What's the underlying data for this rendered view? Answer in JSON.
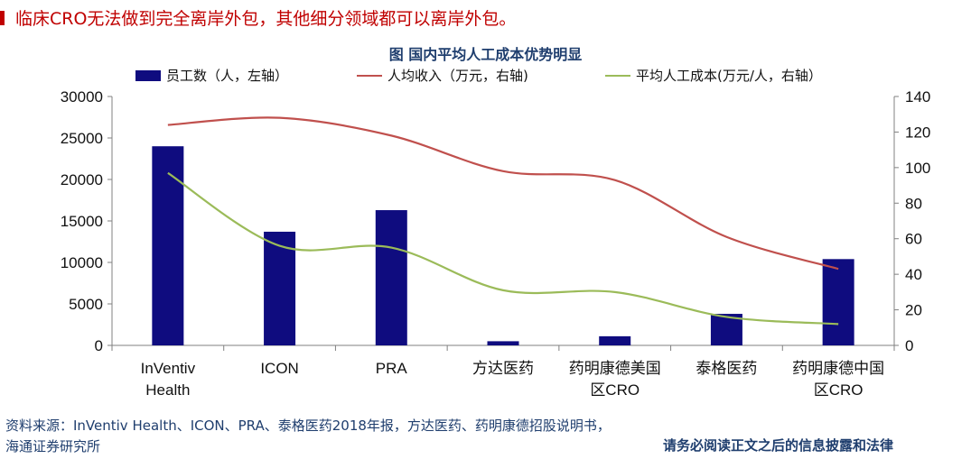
{
  "heading": "临床CRO无法做到完全离岸外包，其他细分领域都可以离岸外包。",
  "chart_data": {
    "type": "bar",
    "title": "图  国内平均人工成本优势明显",
    "categories": [
      [
        "InVentiv",
        "Health"
      ],
      [
        "ICON"
      ],
      [
        "PRA"
      ],
      [
        "方达医药"
      ],
      [
        "药明康德美国",
        "区CRO"
      ],
      [
        "泰格医药"
      ],
      [
        "药明康德中国",
        "区CRO"
      ]
    ],
    "left_axis": {
      "min": 0,
      "max": 30000,
      "ticks": [
        "0",
        "5000",
        "10000",
        "15000",
        "20000",
        "25000",
        "30000"
      ]
    },
    "right_axis": {
      "min": 0,
      "max": 140,
      "ticks": [
        "0",
        "20",
        "40",
        "60",
        "80",
        "100",
        "120",
        "140"
      ]
    },
    "series": [
      {
        "name": "员工数（人，左轴）",
        "type": "bar",
        "axis": "left",
        "color": "#0F0C7F",
        "values": [
          24000,
          13700,
          16300,
          500,
          1100,
          3800,
          10400
        ]
      },
      {
        "name": "人均收入（万元，右轴)",
        "type": "line",
        "axis": "right",
        "color": "#C0504D",
        "values": [
          124,
          128,
          118,
          98,
          93,
          61,
          43
        ]
      },
      {
        "name": "平均人工成本(万元/人，右轴）",
        "type": "line",
        "axis": "right",
        "color": "#9BBB59",
        "values": [
          97,
          56,
          55,
          31,
          30,
          16,
          12
        ]
      }
    ]
  },
  "source": {
    "line1": "资料来源：InVentiv Health、ICON、PRA、泰格医药2018年报，方达医药、药明康德招股说明书，",
    "line2": "海通证券研究所"
  },
  "disclaimer": "请务必阅读正文之后的信息披露和法律"
}
